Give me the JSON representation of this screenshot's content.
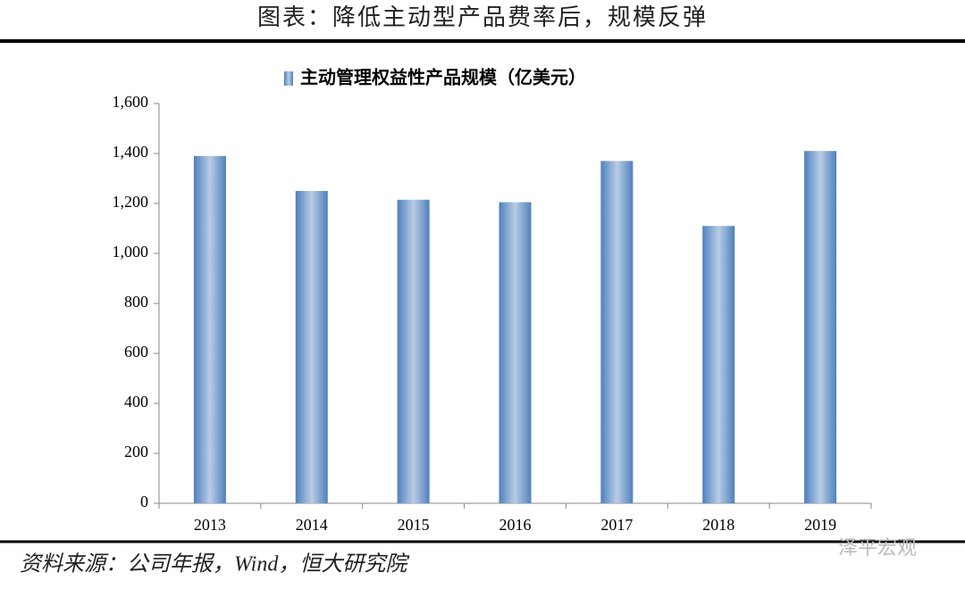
{
  "figure_title": "图表：降低主动型产品费率后，规模反弹",
  "source": "资料来源：公司年报，Wind，恒大研究院",
  "watermark": "泽平宏观",
  "chart_data": {
    "type": "bar",
    "categories": [
      "2013",
      "2014",
      "2015",
      "2016",
      "2017",
      "2018",
      "2019"
    ],
    "series": [
      {
        "name": "主动管理权益性产品规模（亿美元）",
        "color": "#4f81bd",
        "values": [
          1390,
          1250,
          1215,
          1205,
          1370,
          1110,
          1410
        ]
      }
    ],
    "ylim": [
      0,
      1600
    ],
    "yticks": [
      0,
      200,
      400,
      600,
      800,
      {
        "value": 1000,
        "label": "1,000"
      },
      {
        "value": 1200,
        "label": "1,200"
      },
      {
        "value": 1400,
        "label": "1,400"
      },
      {
        "value": 1600,
        "label": "1,600"
      }
    ],
    "legend": "top"
  }
}
